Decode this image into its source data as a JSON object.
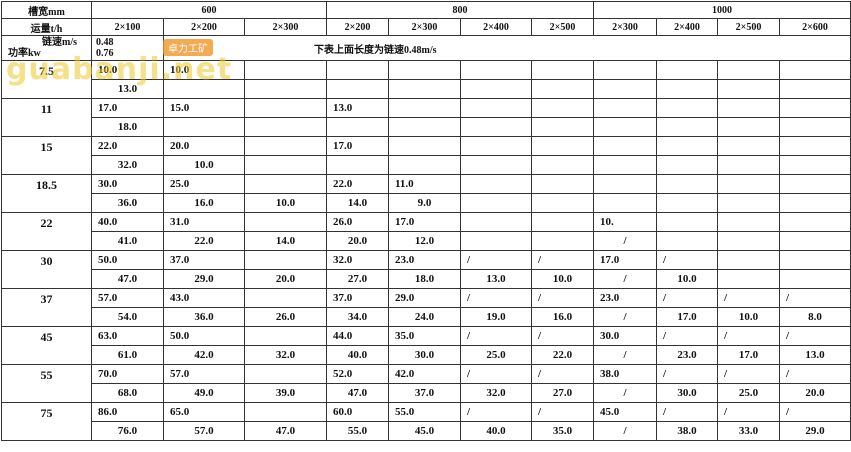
{
  "header": {
    "width_label": "槽宽mm",
    "capacity_label": "运量t/h",
    "speed_label": "链速m/s",
    "power_label": "功率kw",
    "speeds": [
      "0.48",
      "0.76"
    ],
    "note": "下表上面长度为链速0.48m/s",
    "groups": [
      {
        "width": "600",
        "chains": [
          "2×100",
          "2×200",
          "2×300"
        ]
      },
      {
        "width": "800",
        "chains": [
          "2×200",
          "2×300",
          "2×400",
          "2×500"
        ]
      },
      {
        "width": "1000",
        "chains": [
          "2×300",
          "2×400",
          "2×500",
          "2×600"
        ]
      }
    ]
  },
  "table": {
    "rows": [
      {
        "power": "7.5",
        "top": [
          "10.0",
          "10.0",
          null,
          null,
          null,
          null,
          null,
          null,
          null,
          null,
          null
        ],
        "bottom": [
          "13.0",
          null,
          null,
          null,
          null,
          null,
          null,
          null,
          null,
          null,
          null
        ]
      },
      {
        "power": "11",
        "top": [
          "17.0",
          "15.0",
          null,
          "13.0",
          null,
          null,
          null,
          null,
          null,
          null,
          null
        ],
        "bottom": [
          "18.0",
          null,
          null,
          null,
          null,
          null,
          null,
          null,
          null,
          null,
          null
        ]
      },
      {
        "power": "15",
        "top": [
          "22.0",
          "20.0",
          null,
          "17.0",
          null,
          null,
          null,
          null,
          null,
          null,
          null
        ],
        "bottom": [
          "32.0",
          "10.0",
          null,
          null,
          null,
          null,
          null,
          null,
          null,
          null,
          null
        ]
      },
      {
        "power": "18.5",
        "top": [
          "30.0",
          "25.0",
          null,
          "22.0",
          "11.0",
          null,
          null,
          null,
          null,
          null,
          null
        ],
        "bottom": [
          "36.0",
          "16.0",
          "10.0",
          "14.0",
          "9.0",
          null,
          null,
          null,
          null,
          null,
          null
        ]
      },
      {
        "power": "22",
        "top": [
          "40.0",
          "31.0",
          null,
          "26.0",
          "17.0",
          null,
          null,
          "10.",
          null,
          null,
          null
        ],
        "bottom": [
          "41.0",
          "22.0",
          "14.0",
          "20.0",
          "12.0",
          null,
          null,
          "/",
          null,
          null,
          null
        ]
      },
      {
        "power": "30",
        "top": [
          "50.0",
          "37.0",
          null,
          "32.0",
          "23.0",
          "/",
          "/",
          "17.0",
          "/",
          null,
          null
        ],
        "bottom": [
          "47.0",
          "29.0",
          "20.0",
          "27.0",
          "18.0",
          "13.0",
          "10.0",
          "/",
          "10.0",
          null,
          null
        ]
      },
      {
        "power": "37",
        "top": [
          "57.0",
          "43.0",
          null,
          "37.0",
          "29.0",
          "/",
          "/",
          "23.0",
          "/",
          "/",
          "/"
        ],
        "bottom": [
          "54.0",
          "36.0",
          "26.0",
          "34.0",
          "24.0",
          "19.0",
          "16.0",
          "/",
          "17.0",
          "10.0",
          "8.0"
        ]
      },
      {
        "power": "45",
        "top": [
          "63.0",
          "50.0",
          null,
          "44.0",
          "35.0",
          "/",
          "/",
          "30.0",
          "/",
          "/",
          "/"
        ],
        "bottom": [
          "61.0",
          "42.0",
          "32.0",
          "40.0",
          "30.0",
          "25.0",
          "22.0",
          "/",
          "23.0",
          "17.0",
          "13.0"
        ]
      },
      {
        "power": "55",
        "top": [
          "70.0",
          "57.0",
          null,
          "52.0",
          "42.0",
          "/",
          "/",
          "38.0",
          "/",
          "/",
          "/"
        ],
        "bottom": [
          "68.0",
          "49.0",
          "39.0",
          "47.0",
          "37.0",
          "32.0",
          "27.0",
          "/",
          "30.0",
          "25.0",
          "20.0"
        ]
      },
      {
        "power": "75",
        "top": [
          "86.0",
          "65.0",
          null,
          "60.0",
          "55.0",
          "/",
          "/",
          "45.0",
          "/",
          "/",
          "/"
        ],
        "bottom": [
          "76.0",
          "57.0",
          "47.0",
          "55.0",
          "45.0",
          "40.0",
          "35.0",
          "/",
          "38.0",
          "33.0",
          "29.0"
        ]
      }
    ]
  },
  "watermark": {
    "text": "guabanji.net",
    "badge": "卓力工矿"
  }
}
